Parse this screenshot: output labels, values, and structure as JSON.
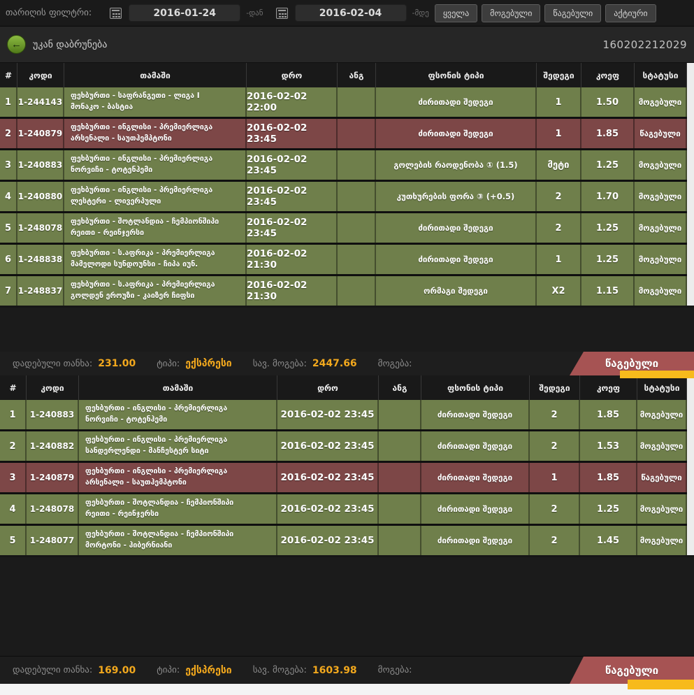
{
  "filter_bar": {
    "label": "თარიღის ფილტრი:",
    "date_from": "2016-01-24",
    "from_suffix": "-დან",
    "date_to": "2016-02-04",
    "to_suffix": "-მდე",
    "buttons": {
      "all": "ყველა",
      "won": "მოგებული",
      "lost": "წაგებული",
      "active": "აქტიური"
    }
  },
  "section_header": {
    "back_label": "უკან დაბრუნება",
    "bet_id": "160202212029"
  },
  "columns": {
    "num": "#",
    "code": "კოდი",
    "game": "თამაში",
    "time": "დრო",
    "score": "ანგ",
    "bet_type": "ფსონის ტიპი",
    "pick": "შედეგი",
    "odds": "კოეფ",
    "status": "სტატუსი"
  },
  "ticket1": {
    "rows": [
      {
        "num": "1",
        "code": "1-244143",
        "game_line1": "ფეხბურთი - საფრანგეთი - ლიგა I",
        "game_line2": "მონაკო - ბასტია",
        "time": "2016-02-02 22:00",
        "score": "",
        "bet_type": "ძირითადი შედეგი",
        "pick": "1",
        "odds": "1.50",
        "status": "მოგებული",
        "state": "won"
      },
      {
        "num": "2",
        "code": "1-240879",
        "game_line1": "ფეხბურთი - ინგლისი - პრემიერლიგა",
        "game_line2": "არსენალი - საუთჰემპტონი",
        "time": "2016-02-02 23:45",
        "score": "",
        "bet_type": "ძირითადი შედეგი",
        "pick": "1",
        "odds": "1.85",
        "status": "წაგებული",
        "state": "lost"
      },
      {
        "num": "3",
        "code": "1-240883",
        "game_line1": "ფეხბურთი - ინგლისი - პრემიერლიგა",
        "game_line2": "ნორვიჩი - ტოტენჰემი",
        "time": "2016-02-02 23:45",
        "score": "",
        "bet_type": "გოლების რაოდენობა ① (1.5)",
        "pick": "მეტი",
        "odds": "1.25",
        "status": "მოგებული",
        "state": "won"
      },
      {
        "num": "4",
        "code": "1-240880",
        "game_line1": "ფეხბურთი - ინგლისი - პრემიერლიგა",
        "game_line2": "ლესტერი - ლივერპული",
        "time": "2016-02-02 23:45",
        "score": "",
        "bet_type": "კუთხურების ფორა ③ (+0.5)",
        "pick": "2",
        "odds": "1.70",
        "status": "მოგებული",
        "state": "won"
      },
      {
        "num": "5",
        "code": "1-248078",
        "game_line1": "ფეხბურთი - შოტლანდია - ჩემპიონშიპი",
        "game_line2": "რეითი - რეინჯერსი",
        "time": "2016-02-02 23:45",
        "score": "",
        "bet_type": "ძირითადი შედეგი",
        "pick": "2",
        "odds": "1.25",
        "status": "მოგებული",
        "state": "won"
      },
      {
        "num": "6",
        "code": "1-248838",
        "game_line1": "ფეხბურთი - ს.აფრიკა - პრემიერლიგა",
        "game_line2": "მამელოდი სუნდოუნსი - ჩიპა იუნ.",
        "time": "2016-02-02 21:30",
        "score": "",
        "bet_type": "ძირითადი შედეგი",
        "pick": "1",
        "odds": "1.25",
        "status": "მოგებული",
        "state": "won"
      },
      {
        "num": "7",
        "code": "1-248837",
        "game_line1": "ფეხბურთი - ს.აფრიკა - პრემიერლიგა",
        "game_line2": "გოლდენ ეროუზი - კაიზერ ჩიფსი",
        "time": "2016-02-02 21:30",
        "score": "",
        "bet_type": "ორმაგი შედეგი",
        "pick": "X2",
        "odds": "1.15",
        "status": "მოგებული",
        "state": "won"
      }
    ],
    "summary": {
      "stake_label": "დადებული თანხა:",
      "stake": "231.00",
      "type_label": "ტიპი:",
      "type": "ექსპრესი",
      "potential_label": "სავ. მოგება:",
      "potential": "2447.66",
      "win_label": "მოგება:",
      "banner": "წაგებული"
    }
  },
  "ticket2": {
    "rows": [
      {
        "num": "1",
        "code": "1-240883",
        "game_line1": "ფეხბურთი - ინგლისი - პრემიერლიგა",
        "game_line2": "ნორვიჩი - ტოტენჰემი",
        "time": "2016-02-02 23:45",
        "score": "",
        "bet_type": "ძირითადი შედეგი",
        "pick": "2",
        "odds": "1.85",
        "status": "მოგებული",
        "state": "won"
      },
      {
        "num": "2",
        "code": "1-240882",
        "game_line1": "ფეხბურთი - ინგლისი - პრემიერლიგა",
        "game_line2": "სანდერლენდი - მანჩესტერ სიტი",
        "time": "2016-02-02 23:45",
        "score": "",
        "bet_type": "ძირითადი შედეგი",
        "pick": "2",
        "odds": "1.53",
        "status": "მოგებული",
        "state": "won"
      },
      {
        "num": "3",
        "code": "1-240879",
        "game_line1": "ფეხბურთი - ინგლისი - პრემიერლიგა",
        "game_line2": "არსენალი - საუთჰემპტონი",
        "time": "2016-02-02 23:45",
        "score": "",
        "bet_type": "ძირითადი შედეგი",
        "pick": "1",
        "odds": "1.85",
        "status": "წაგებული",
        "state": "lost"
      },
      {
        "num": "4",
        "code": "1-248078",
        "game_line1": "ფეხბურთი - შოტლანდია - ჩემპიონშიპი",
        "game_line2": "რეითი - რეინჯერსი",
        "time": "2016-02-02 23:45",
        "score": "",
        "bet_type": "ძირითადი შედეგი",
        "pick": "2",
        "odds": "1.25",
        "status": "მოგებული",
        "state": "won"
      },
      {
        "num": "5",
        "code": "1-248077",
        "game_line1": "ფეხბურთი - შოტლანდია - ჩემპიონშიპი",
        "game_line2": "მორტონი - ჰიბერნიანი",
        "time": "2016-02-02 23:45",
        "score": "",
        "bet_type": "ძირითადი შედეგი",
        "pick": "2",
        "odds": "1.45",
        "status": "მოგებული",
        "state": "won"
      }
    ],
    "summary": {
      "stake_label": "დადებული თანხა:",
      "stake": "169.00",
      "type_label": "ტიპი:",
      "type": "ექსპრესი",
      "potential_label": "სავ. მოგება:",
      "potential": "1603.98",
      "win_label": "მოგება:",
      "banner": "წაგებული"
    }
  },
  "colors": {
    "accent_orange": "#f2a81d",
    "win_row_green": "#6f7f4b",
    "lose_row_red": "#7d4747",
    "banner_red": "#a65353",
    "underline_yellow": "#f7ba1c",
    "back_button_green": "#6fa02c"
  }
}
